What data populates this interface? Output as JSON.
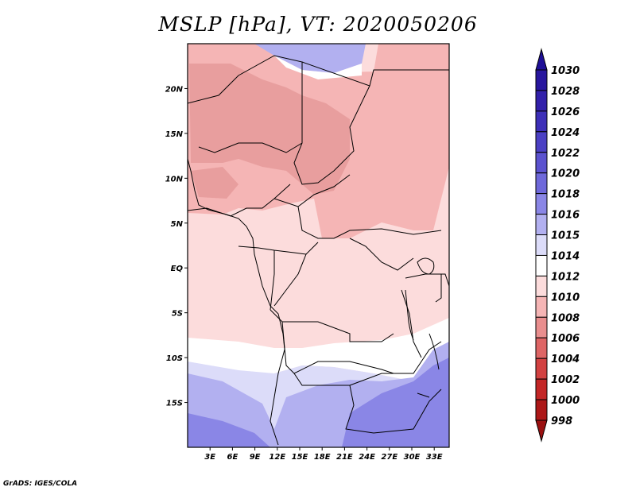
{
  "title": "MSLP [hPa], VT: 2020050206",
  "credit": "GrADS: IGES/COLA",
  "chart_data": {
    "type": "heatmap",
    "variable": "Mean sea level pressure",
    "units": "hPa",
    "valid_time": "2020050206",
    "lon_range": [
      0,
      35
    ],
    "lat_range": [
      -20,
      25
    ],
    "lon_ticks": [
      "3E",
      "6E",
      "9E",
      "12E",
      "15E",
      "18E",
      "21E",
      "24E",
      "27E",
      "30E",
      "33E"
    ],
    "lat_ticks": [
      "20N",
      "15N",
      "10N",
      "5N",
      "EQ",
      "5S",
      "10S",
      "15S"
    ],
    "colorbar": {
      "levels": [
        "1030",
        "1028",
        "1026",
        "1024",
        "1022",
        "1020",
        "1018",
        "1016",
        "1015",
        "1014",
        "1012",
        "1010",
        "1008",
        "1006",
        "1004",
        "1002",
        "1000",
        "998"
      ],
      "colors": [
        "#1e0f96",
        "#28169e",
        "#3220aa",
        "#3d2fb8",
        "#4b40c4",
        "#5b52cf",
        "#6e68da",
        "#8a86e6",
        "#b2b0f0",
        "#dcdcf9",
        "#ffffff",
        "#fcdcdc",
        "#f5b5b5",
        "#e98e8e",
        "#de6565",
        "#d24141",
        "#c32626",
        "#ad1818",
        "#9b1010"
      ]
    }
  }
}
